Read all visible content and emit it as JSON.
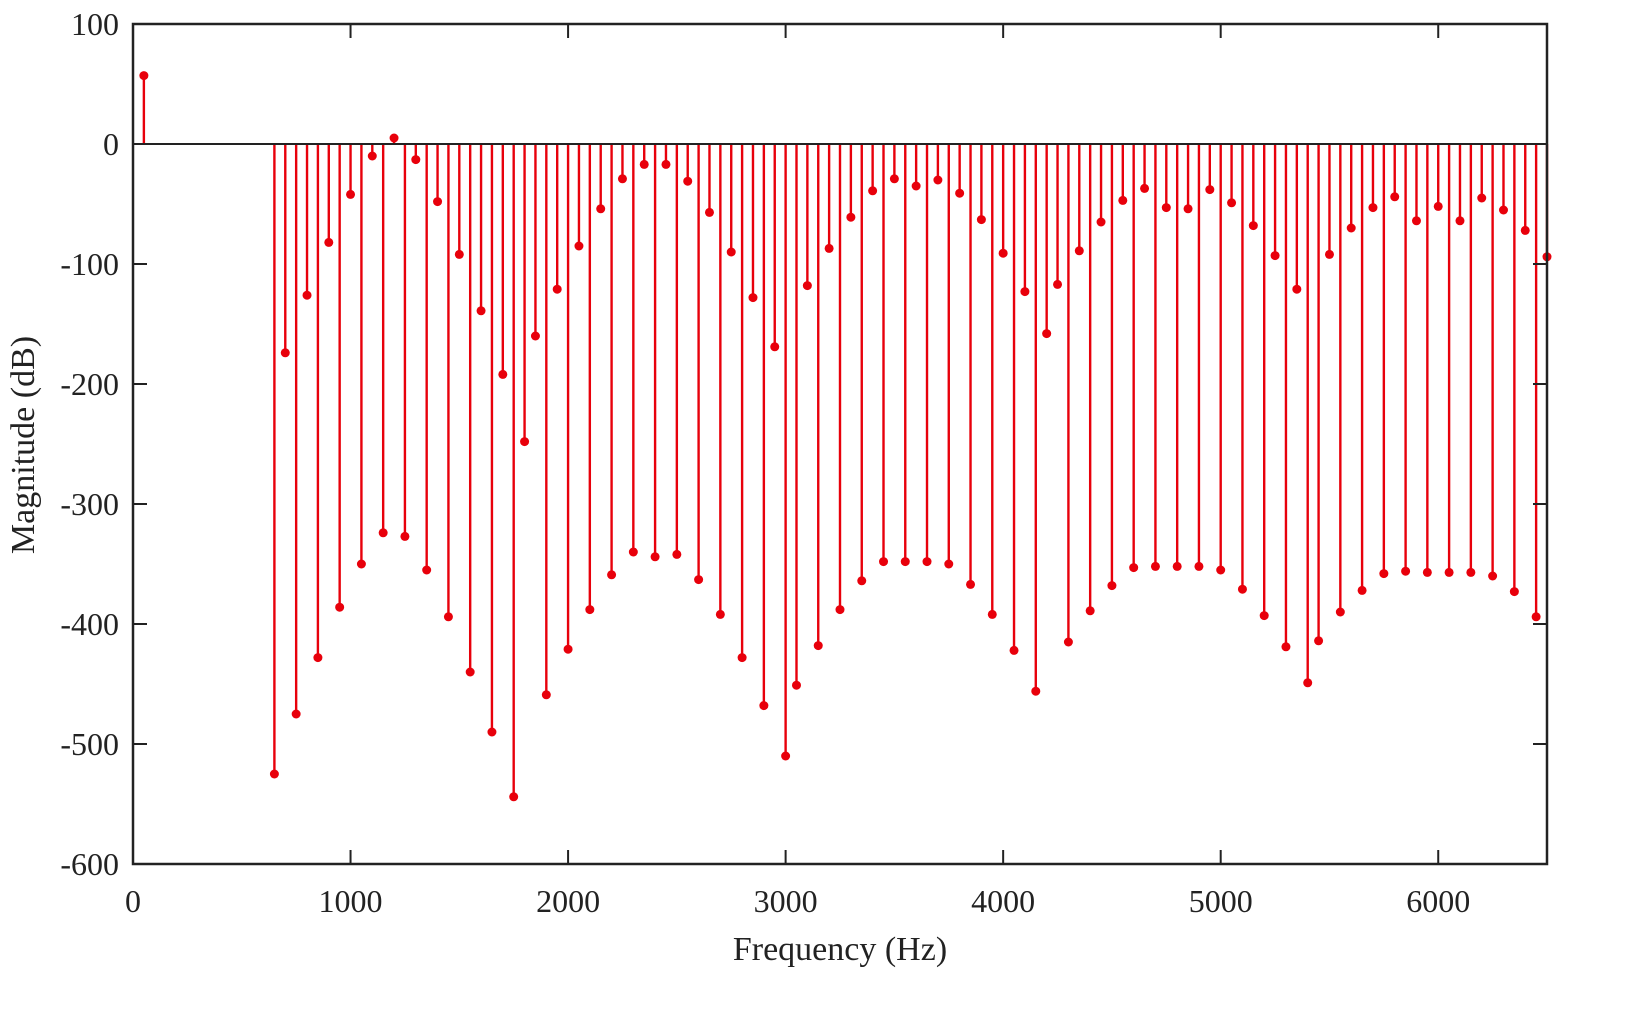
{
  "chart_data": {
    "type": "stem",
    "title": "",
    "xlabel": "Frequency (Hz)",
    "ylabel": "Magnitude (dB)",
    "xlim": [
      0,
      6500
    ],
    "ylim": [
      -600,
      100
    ],
    "xticks": [
      0,
      1000,
      2000,
      3000,
      4000,
      5000,
      6000
    ],
    "yticks": [
      100,
      0,
      -100,
      -200,
      -300,
      -400,
      -500,
      -600
    ],
    "grid": false,
    "legend": null,
    "color": "#e8000b",
    "series": [
      {
        "name": "Magnitude",
        "x": [
          50,
          650,
          700,
          750,
          800,
          850,
          900,
          950,
          1000,
          1050,
          1100,
          1150,
          1200,
          1250,
          1300,
          1350,
          1400,
          1450,
          1500,
          1550,
          1600,
          1650,
          1700,
          1750,
          1800,
          1850,
          1900,
          1950,
          2000,
          2050,
          2100,
          2150,
          2200,
          2250,
          2300,
          2350,
          2400,
          2450,
          2500,
          2550,
          2600,
          2650,
          2700,
          2750,
          2800,
          2850,
          2900,
          2950,
          3000,
          3050,
          3100,
          3150,
          3200,
          3250,
          3300,
          3350,
          3400,
          3450,
          3500,
          3550,
          3600,
          3650,
          3700,
          3750,
          3800,
          3850,
          3900,
          3950,
          4000,
          4050,
          4100,
          4150,
          4200,
          4250,
          4300,
          4350,
          4400,
          4450,
          4500,
          4550,
          4600,
          4650,
          4700,
          4750,
          4800,
          4850,
          4900,
          4950,
          5000,
          5050,
          5100,
          5150,
          5200,
          5250,
          5300,
          5350,
          5400,
          5450,
          5500,
          5550,
          5600,
          5650,
          5700,
          5750,
          5800,
          5850,
          5900,
          5950,
          6000,
          6050,
          6100,
          6150,
          6200,
          6250,
          6300,
          6350,
          6400,
          6450,
          6500
        ],
        "y": [
          57,
          -525,
          -174,
          -475,
          -126,
          -428,
          -82,
          -386,
          -42,
          -350,
          -10,
          -324,
          5,
          -327,
          -13,
          -355,
          -48,
          -394,
          -92,
          -440,
          -139,
          -490,
          -192,
          -544,
          -248,
          -160,
          -459,
          -121,
          -421,
          -85,
          -388,
          -54,
          -359,
          -29,
          -340,
          -17,
          -344,
          -17,
          -342,
          -31,
          -363,
          -57,
          -392,
          -90,
          -428,
          -128,
          -468,
          -169,
          -510,
          -451,
          -118,
          -418,
          -87,
          -388,
          -61,
          -364,
          -39,
          -348,
          -29,
          -348,
          -35,
          -348,
          -30,
          -350,
          -41,
          -367,
          -63,
          -392,
          -91,
          -422,
          -123,
          -456,
          -158,
          -117,
          -415,
          -89,
          -389,
          -65,
          -368,
          -47,
          -353,
          -37,
          -352,
          -53,
          -352,
          -54,
          -352,
          -38,
          -355,
          -49,
          -371,
          -68,
          -393,
          -93,
          -419,
          -121,
          -449,
          -414,
          -92,
          -390,
          -70,
          -372,
          -53,
          -358,
          -44,
          -356,
          -64,
          -357,
          -52,
          -357,
          -64,
          -357,
          -45,
          -360,
          -55,
          -373,
          -72,
          -394,
          -94
        ]
      }
    ]
  }
}
